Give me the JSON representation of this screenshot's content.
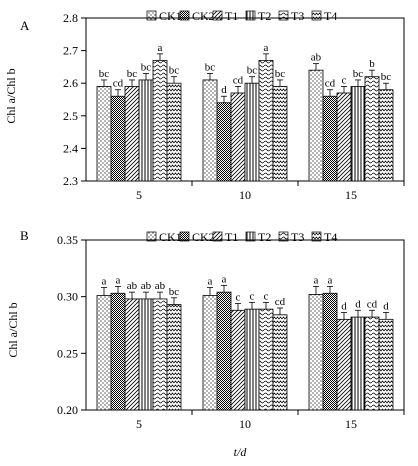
{
  "chart_data": [
    {
      "type": "bar",
      "panel_label": "A",
      "categories": [
        "5",
        "10",
        "15"
      ],
      "ylabel": "Chl a/Chl b",
      "xlabel": "",
      "ylim": [
        2.3,
        2.8
      ],
      "yticks": [
        "2.3",
        "2.4",
        "2.5",
        "2.6",
        "2.7",
        "2.8"
      ],
      "grid": false,
      "legend_position": "top",
      "series": [
        {
          "name": "CK1",
          "pattern": "dots",
          "values": [
            2.59,
            2.61,
            2.64
          ],
          "errors": [
            0.02,
            0.02,
            0.02
          ],
          "letters": [
            "bc",
            "bc",
            "ab"
          ]
        },
        {
          "name": "CK2",
          "pattern": "dense",
          "values": [
            2.56,
            2.54,
            2.56
          ],
          "errors": [
            0.02,
            0.02,
            0.02
          ],
          "letters": [
            "cd",
            "d",
            "cd"
          ]
        },
        {
          "name": "T1",
          "pattern": "diag",
          "values": [
            2.59,
            2.57,
            2.57
          ],
          "errors": [
            0.02,
            0.02,
            0.02
          ],
          "letters": [
            "bc",
            "cd",
            "c"
          ]
        },
        {
          "name": "T2",
          "pattern": "vlines",
          "values": [
            2.61,
            2.6,
            2.59
          ],
          "errors": [
            0.02,
            0.02,
            0.02
          ],
          "letters": [
            "bc",
            "bc",
            "bc"
          ]
        },
        {
          "name": "T3",
          "pattern": "hwave",
          "values": [
            2.67,
            2.67,
            2.62
          ],
          "errors": [
            0.02,
            0.02,
            0.02
          ],
          "letters": [
            "a",
            "a",
            "b"
          ]
        },
        {
          "name": "T4",
          "pattern": "zigzag",
          "values": [
            2.6,
            2.59,
            2.58
          ],
          "errors": [
            0.02,
            0.02,
            0.02
          ],
          "letters": [
            "bc",
            "bc",
            "bc"
          ]
        }
      ]
    },
    {
      "type": "bar",
      "panel_label": "B",
      "categories": [
        "5",
        "10",
        "15"
      ],
      "ylabel": "Chl a/Chl b",
      "xlabel": "t/d",
      "ylim": [
        0.2,
        0.35
      ],
      "yticks": [
        "0.20",
        "0.25",
        "0.30",
        "0.35"
      ],
      "grid": false,
      "legend_position": "top",
      "series": [
        {
          "name": "CK1",
          "pattern": "dots",
          "values": [
            0.301,
            0.301,
            0.302
          ],
          "errors": [
            0.007,
            0.007,
            0.007
          ],
          "letters": [
            "a",
            "a",
            "a"
          ]
        },
        {
          "name": "CK2",
          "pattern": "dense",
          "values": [
            0.303,
            0.304,
            0.303
          ],
          "errors": [
            0.006,
            0.006,
            0.006
          ],
          "letters": [
            "a",
            "a",
            "a"
          ]
        },
        {
          "name": "T1",
          "pattern": "diag",
          "values": [
            0.298,
            0.288,
            0.28
          ],
          "errors": [
            0.006,
            0.006,
            0.006
          ],
          "letters": [
            "ab",
            "c",
            "d"
          ]
        },
        {
          "name": "T2",
          "pattern": "vlines",
          "values": [
            0.298,
            0.289,
            0.282
          ],
          "errors": [
            0.006,
            0.006,
            0.006
          ],
          "letters": [
            "ab",
            "c",
            "d"
          ]
        },
        {
          "name": "T3",
          "pattern": "hwave",
          "values": [
            0.298,
            0.289,
            0.282
          ],
          "errors": [
            0.006,
            0.006,
            0.006
          ],
          "letters": [
            "ab",
            "c",
            "cd"
          ]
        },
        {
          "name": "T4",
          "pattern": "zigzag",
          "values": [
            0.293,
            0.284,
            0.28
          ],
          "errors": [
            0.006,
            0.006,
            0.006
          ],
          "letters": [
            "bc",
            "cd",
            "d"
          ]
        }
      ]
    }
  ]
}
